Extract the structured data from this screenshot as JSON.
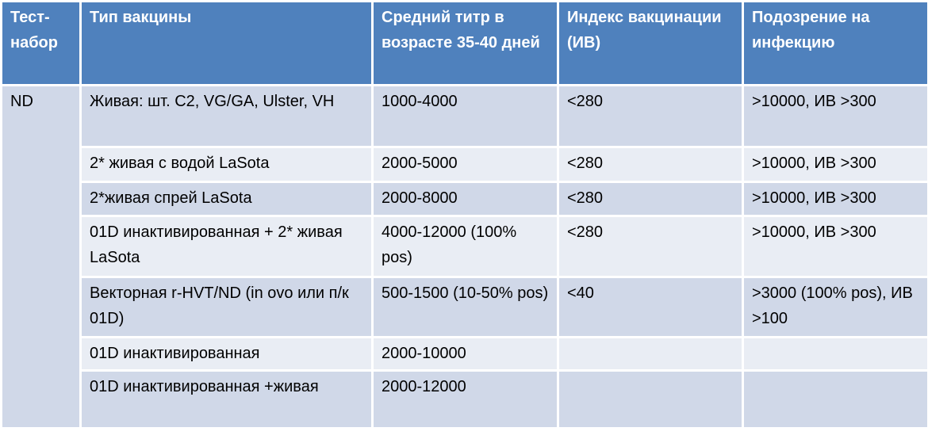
{
  "headers": [
    "Тест-набор",
    "Тип вакцины",
    "Средний титр в возрасте 35-40 дней",
    "Индекс вакцинации (ИВ)",
    "Подозрение на инфекцию"
  ],
  "group": "ND",
  "rows": [
    [
      "Живая: шт. C2, VG/GA, Ulster, VH",
      "1000-4000",
      "<280",
      ">10000, ИВ >300"
    ],
    [
      "2* живая с водой LaSota",
      "2000-5000",
      "<280",
      ">10000, ИВ >300"
    ],
    [
      "2*живая спрей LaSota",
      "2000-8000",
      "<280",
      ">10000, ИВ >300"
    ],
    [
      "01D инактивированная + 2* живая LaSota",
      "4000-12000 (100% pos)",
      "<280",
      ">10000, ИВ >300"
    ],
    [
      "Векторная r-HVT/ND (in ovo или п/к 01D)",
      "500-1500 (10-50% pos)",
      "<40",
      ">3000 (100% pos), ИВ >100"
    ],
    [
      "01D  инактивированная",
      "2000-10000",
      "",
      ""
    ],
    [
      "01D инактивированная +живая",
      "2000-12000",
      "",
      ""
    ]
  ],
  "colors": {
    "header": "#4f81bd",
    "row_dark": "#d0d8e8",
    "row_light": "#e9edf4"
  }
}
